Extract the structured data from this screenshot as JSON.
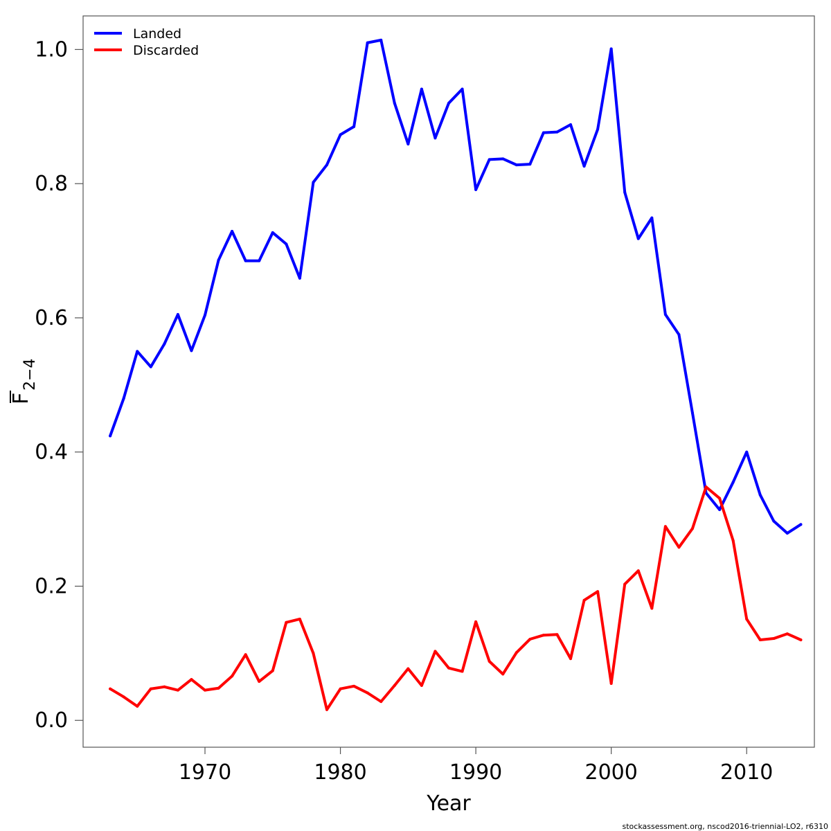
{
  "chart_data": {
    "type": "line",
    "title": "",
    "xlabel": "Year",
    "ylabel_main": "F",
    "ylabel_sub": "2−4",
    "xlim": [
      1961,
      2015
    ],
    "ylim": [
      -0.04,
      1.05
    ],
    "x_ticks": [
      1970,
      1980,
      1990,
      2000,
      2010
    ],
    "y_ticks": [
      0.0,
      0.2,
      0.4,
      0.6,
      0.8,
      1.0
    ],
    "y_tick_labels": [
      "0.0",
      "0.2",
      "0.4",
      "0.6",
      "0.8",
      "1.0"
    ],
    "legend_position": "top-left",
    "x": [
      1963,
      1964,
      1965,
      1966,
      1967,
      1968,
      1969,
      1970,
      1971,
      1972,
      1973,
      1974,
      1975,
      1976,
      1977,
      1978,
      1979,
      1980,
      1981,
      1982,
      1983,
      1984,
      1985,
      1986,
      1987,
      1988,
      1989,
      1990,
      1991,
      1992,
      1993,
      1994,
      1995,
      1996,
      1997,
      1998,
      1999,
      2000,
      2001,
      2002,
      2003,
      2004,
      2005,
      2006,
      2007,
      2008,
      2009,
      2010,
      2011,
      2012,
      2013,
      2014
    ],
    "series": [
      {
        "name": "Landed",
        "color": "#0000ff",
        "values": [
          0.424,
          0.48,
          0.55,
          0.527,
          0.561,
          0.605,
          0.551,
          0.604,
          0.686,
          0.729,
          0.685,
          0.685,
          0.727,
          0.71,
          0.659,
          0.802,
          0.828,
          0.873,
          0.885,
          1.01,
          1.014,
          0.92,
          0.859,
          0.941,
          0.868,
          0.92,
          0.941,
          0.791,
          0.836,
          0.837,
          0.828,
          0.829,
          0.876,
          0.877,
          0.888,
          0.826,
          0.881,
          1.001,
          0.787,
          0.718,
          0.749,
          0.605,
          0.575,
          0.458,
          0.339,
          0.314,
          0.355,
          0.4,
          0.336,
          0.297,
          0.279,
          0.292
        ]
      },
      {
        "name": "Discarded",
        "color": "#ff0000",
        "values": [
          0.047,
          0.035,
          0.021,
          0.047,
          0.05,
          0.045,
          0.061,
          0.045,
          0.048,
          0.066,
          0.098,
          0.058,
          0.074,
          0.146,
          0.151,
          0.1,
          0.016,
          0.047,
          0.051,
          0.041,
          0.028,
          0.052,
          0.077,
          0.052,
          0.103,
          0.078,
          0.073,
          0.147,
          0.088,
          0.069,
          0.101,
          0.121,
          0.127,
          0.128,
          0.092,
          0.179,
          0.192,
          0.055,
          0.203,
          0.223,
          0.167,
          0.289,
          0.258,
          0.286,
          0.348,
          0.331,
          0.268,
          0.151,
          0.12,
          0.122,
          0.129,
          0.12
        ]
      }
    ]
  },
  "footer": "stockassessment.org, nscod2016-triennial-LO2, r6310"
}
